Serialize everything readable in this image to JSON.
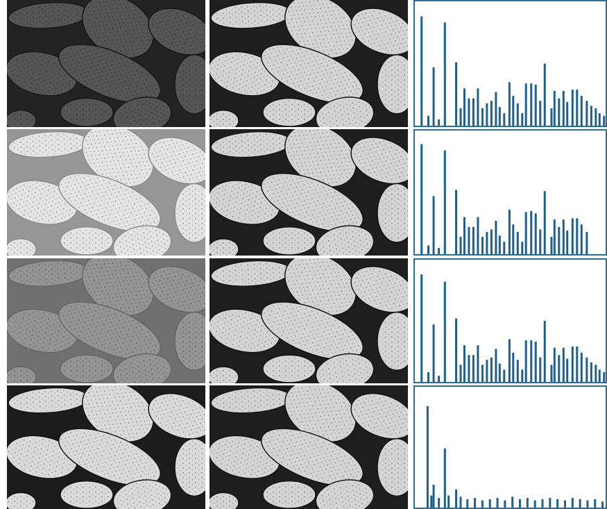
{
  "chart_data": [
    {
      "type": "bar",
      "color": "#1f5f8b",
      "xlim": [
        0,
        255
      ],
      "ylim": [
        0,
        100
      ],
      "x": [
        9,
        18,
        25,
        32,
        40,
        55,
        61,
        66,
        72,
        78,
        84,
        90,
        96,
        102,
        108,
        113,
        119,
        126,
        131,
        137,
        143,
        148,
        155,
        161,
        167,
        173,
        182,
        186,
        192,
        198,
        203,
        210,
        216,
        222,
        229,
        235,
        241,
        246,
        252
      ],
      "values": [
        88,
        8,
        47,
        5,
        83,
        51,
        14,
        30,
        22,
        22,
        30,
        14,
        18,
        20,
        27,
        15,
        10,
        35,
        24,
        18,
        10,
        34,
        34,
        33,
        20,
        50,
        14,
        28,
        22,
        28,
        19,
        29,
        29,
        24,
        20,
        16,
        14,
        10,
        8
      ]
    },
    {
      "type": "bar",
      "color": "#1f5f8b",
      "xlim": [
        0,
        255
      ],
      "ylim": [
        0,
        100
      ],
      "x": [
        9,
        18,
        25,
        32,
        40,
        55,
        61,
        66,
        72,
        78,
        84,
        90,
        96,
        102,
        108,
        113,
        119,
        126,
        131,
        137,
        143,
        148,
        155,
        161,
        167,
        173,
        182,
        186,
        192,
        198,
        203,
        210,
        216,
        222,
        229
      ],
      "values": [
        89,
        7,
        47,
        5,
        84,
        52,
        14,
        30,
        22,
        22,
        30,
        14,
        18,
        20,
        27,
        15,
        10,
        36,
        24,
        18,
        10,
        34,
        35,
        33,
        20,
        51,
        14,
        28,
        22,
        28,
        19,
        29,
        29,
        24,
        18
      ]
    },
    {
      "type": "bar",
      "color": "#1f5f8b",
      "xlim": [
        0,
        255
      ],
      "ylim": [
        0,
        100
      ],
      "x": [
        9,
        18,
        25,
        32,
        40,
        55,
        61,
        66,
        72,
        78,
        84,
        90,
        96,
        102,
        108,
        113,
        119,
        126,
        131,
        137,
        143,
        148,
        155,
        161,
        167,
        173,
        182,
        186,
        192,
        198,
        203,
        210,
        216,
        222,
        229,
        235,
        241,
        246,
        252
      ],
      "values": [
        88,
        8,
        47,
        5,
        82,
        52,
        14,
        30,
        22,
        22,
        30,
        14,
        18,
        20,
        27,
        15,
        10,
        35,
        24,
        18,
        10,
        34,
        34,
        33,
        20,
        50,
        14,
        28,
        22,
        28,
        19,
        29,
        29,
        24,
        20,
        16,
        14,
        10,
        8
      ]
    },
    {
      "type": "bar",
      "color": "#1f5f8b",
      "xlim": [
        0,
        255
      ],
      "ylim": [
        0,
        100
      ],
      "x": [
        17,
        22,
        25,
        32,
        40,
        45,
        55,
        61,
        70,
        80,
        90,
        100,
        110,
        120,
        130,
        140,
        150,
        160,
        170,
        180,
        190,
        200,
        210,
        220,
        230,
        240,
        250
      ],
      "values": [
        84,
        10,
        19,
        8,
        49,
        10,
        15,
        9,
        7,
        8,
        6,
        7,
        8,
        6,
        9,
        7,
        8,
        6,
        7,
        8,
        7,
        6,
        8,
        7,
        6,
        7,
        5
      ]
    }
  ]
}
